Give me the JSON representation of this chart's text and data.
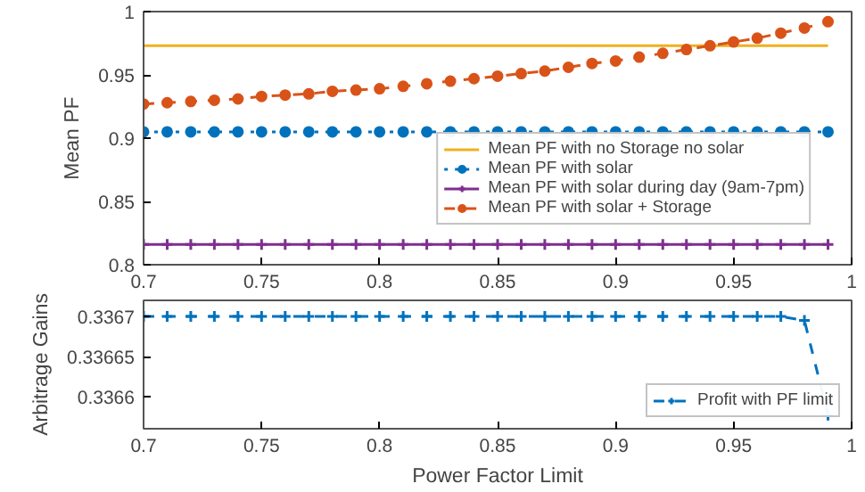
{
  "chart_data": [
    {
      "type": "line",
      "ylabel": "Mean PF",
      "x": [
        0.7,
        0.71,
        0.72,
        0.73,
        0.74,
        0.75,
        0.76,
        0.77,
        0.78,
        0.79,
        0.8,
        0.81,
        0.82,
        0.83,
        0.84,
        0.85,
        0.86,
        0.87,
        0.88,
        0.89,
        0.9,
        0.91,
        0.92,
        0.93,
        0.94,
        0.95,
        0.96,
        0.97,
        0.98,
        0.99
      ],
      "xlim": [
        0.7,
        1
      ],
      "xticks": [
        0.7,
        0.75,
        0.8,
        0.85,
        0.9,
        0.95,
        1
      ],
      "ylim": [
        0.8,
        1
      ],
      "yticks": [
        0.8,
        0.85,
        0.9,
        0.95,
        1
      ],
      "grid": false,
      "legend": "bottom right",
      "series": [
        {
          "name": "Mean PF with no Storage no solar",
          "color": "#edb120",
          "marker": "none",
          "line_style": "solid",
          "values": [
            0.973,
            0.973,
            0.973,
            0.973,
            0.973,
            0.973,
            0.973,
            0.973,
            0.973,
            0.973,
            0.973,
            0.973,
            0.973,
            0.973,
            0.973,
            0.973,
            0.973,
            0.973,
            0.973,
            0.973,
            0.973,
            0.973,
            0.973,
            0.973,
            0.973,
            0.973,
            0.973,
            0.973,
            0.973,
            0.973
          ]
        },
        {
          "name": "Mean PF with solar",
          "color": "#0072bd",
          "marker": "circle",
          "line_style": "dotted",
          "values": [
            0.905,
            0.905,
            0.905,
            0.905,
            0.905,
            0.905,
            0.905,
            0.905,
            0.905,
            0.905,
            0.905,
            0.905,
            0.905,
            0.905,
            0.905,
            0.905,
            0.905,
            0.905,
            0.905,
            0.905,
            0.905,
            0.905,
            0.905,
            0.905,
            0.905,
            0.905,
            0.905,
            0.905,
            0.905,
            0.905
          ]
        },
        {
          "name": "Mean PF with solar during day (9am-7pm)",
          "color": "#7e2f8e",
          "marker": "cross",
          "line_style": "solid",
          "values": [
            0.816,
            0.816,
            0.816,
            0.816,
            0.816,
            0.816,
            0.816,
            0.816,
            0.816,
            0.816,
            0.816,
            0.816,
            0.816,
            0.816,
            0.816,
            0.816,
            0.816,
            0.816,
            0.816,
            0.816,
            0.816,
            0.816,
            0.816,
            0.816,
            0.816,
            0.816,
            0.816,
            0.816,
            0.816,
            0.816
          ]
        },
        {
          "name": "Mean PF with solar + Storage",
          "color": "#d95319",
          "marker": "circle",
          "line_style": "dashed",
          "values": [
            0.927,
            0.928,
            0.929,
            0.93,
            0.931,
            0.933,
            0.934,
            0.935,
            0.937,
            0.938,
            0.939,
            0.941,
            0.943,
            0.945,
            0.947,
            0.949,
            0.951,
            0.953,
            0.956,
            0.959,
            0.961,
            0.964,
            0.967,
            0.97,
            0.973,
            0.976,
            0.979,
            0.983,
            0.987,
            0.992
          ]
        }
      ]
    },
    {
      "type": "line",
      "xlabel": "Power Factor Limit",
      "ylabel": "Arbitrage Gains",
      "x": [
        0.7,
        0.71,
        0.72,
        0.73,
        0.74,
        0.75,
        0.76,
        0.77,
        0.78,
        0.79,
        0.8,
        0.81,
        0.82,
        0.83,
        0.84,
        0.85,
        0.86,
        0.87,
        0.88,
        0.89,
        0.9,
        0.91,
        0.92,
        0.93,
        0.94,
        0.95,
        0.96,
        0.97,
        0.98,
        0.99
      ],
      "xlim": [
        0.7,
        1
      ],
      "xticks": [
        0.7,
        0.75,
        0.8,
        0.85,
        0.9,
        0.95,
        1
      ],
      "ylim": [
        0.33656,
        0.33672
      ],
      "yticks": [
        0.3366,
        0.33665,
        0.3367
      ],
      "grid": false,
      "legend": "bottom right",
      "series": [
        {
          "name": "Profit with PF limit",
          "color": "#0072bd",
          "marker": "cross",
          "line_style": "dashed",
          "values": [
            0.3367,
            0.3367,
            0.3367,
            0.3367,
            0.3367,
            0.3367,
            0.3367,
            0.3367,
            0.3367,
            0.3367,
            0.3367,
            0.3367,
            0.3367,
            0.3367,
            0.3367,
            0.3367,
            0.3367,
            0.3367,
            0.3367,
            0.3367,
            0.3367,
            0.3367,
            0.3367,
            0.3367,
            0.3367,
            0.3367,
            0.3367,
            0.3367,
            0.336695,
            0.336577
          ]
        }
      ]
    }
  ]
}
